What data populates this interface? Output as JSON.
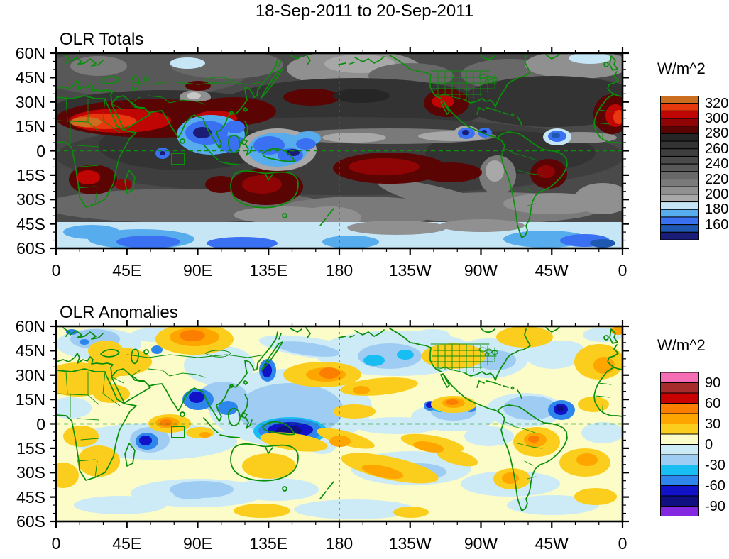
{
  "page": {
    "title": "18-Sep-2011 to 20-Sep-2011"
  },
  "panels": [
    {
      "id": "totals",
      "title": "OLR Totals",
      "units_label": "W/m^2",
      "colorbar": {
        "tick_labels": [
          "320",
          "300",
          "280",
          "260",
          "240",
          "220",
          "200",
          "180",
          "160"
        ],
        "colors_top_to_bottom": [
          "#CC6E20",
          "#E8380E",
          "#C00505",
          "#8F0505",
          "#5A0404",
          "#262626",
          "#333333",
          "#3E3E3E",
          "#4A4A4A",
          "#585858",
          "#686868",
          "#7A7A7A",
          "#909090",
          "#A8A8A8",
          "#C6E6F5",
          "#56ACEC",
          "#3A70F2",
          "#1E58B0",
          "#1B1B78"
        ],
        "contour_interval": 10,
        "labeled_every": 20
      }
    },
    {
      "id": "anomalies",
      "title": "OLR Anomalies",
      "units_label": "W/m^2",
      "colorbar": {
        "tick_labels": [
          "90",
          "60",
          "30",
          "0",
          "-30",
          "-60",
          "-90"
        ],
        "colors_top_to_bottom": [
          "#F56EB5",
          "#A62B2B",
          "#C80000",
          "#FC7E00",
          "#FFA500",
          "#FBCE1D",
          "#FCFCC8",
          "#CDEAF7",
          "#9FCCF2",
          "#18BEF2",
          "#2E86EC",
          "#1212C8",
          "#0F0F80",
          "#8128E0"
        ],
        "contour_interval": 15,
        "labeled_every": 30
      }
    }
  ],
  "axes": {
    "lat_labels": [
      "60N",
      "45N",
      "30N",
      "15N",
      "0",
      "15S",
      "30S",
      "45S",
      "60S"
    ],
    "lon_labels": [
      "0",
      "45E",
      "90E",
      "135E",
      "180",
      "135W",
      "90W",
      "45W",
      "0"
    ],
    "lat_minor_step_deg": 5,
    "lon_minor_step_deg": 15
  },
  "map_annotations": {
    "equator_line": "dashed green line at 0 latitude",
    "dateline_line": "dashed green line at 180 longitude",
    "region_box": "green rectangle over ~70-80E, 0-8S (Indian Ocean)",
    "coastline_color": "#0A8F0A"
  },
  "chart_data": [
    {
      "type": "heatmap",
      "title": "OLR Totals",
      "units": "W/m^2",
      "x_domain_deg_lon": [
        0,
        360
      ],
      "y_domain_deg_lat": [
        -60,
        60
      ],
      "x_tick_labels": [
        "0",
        "45E",
        "90E",
        "135E",
        "180",
        "135W",
        "90W",
        "45W",
        "0"
      ],
      "y_tick_labels": [
        "60N",
        "45N",
        "30N",
        "15N",
        "0",
        "15S",
        "30S",
        "45S",
        "60S"
      ],
      "contour_boundaries": [
        150,
        160,
        170,
        180,
        190,
        200,
        210,
        220,
        230,
        240,
        250,
        260,
        270,
        280,
        290,
        300,
        310,
        320
      ],
      "colorbar_labels": [
        320,
        300,
        280,
        260,
        240,
        220,
        200,
        180,
        160
      ],
      "notable_features": [
        {
          "region": "Sahara and Arabian Peninsula (0-60E, 15-35N)",
          "value_wm2": "300-330 (maximum)"
        },
        {
          "region": "North Africa to Middle East band",
          "value_wm2": "280-300"
        },
        {
          "region": "Southern Africa (15-35E, 10-30S)",
          "value_wm2": "280-310"
        },
        {
          "region": "Australia interior",
          "value_wm2": "280-300"
        },
        {
          "region": "Central South Pacific (180-130W, 0-20S)",
          "value_wm2": "280-290"
        },
        {
          "region": "Eastern Brazil",
          "value_wm2": "280-300"
        },
        {
          "region": "SW United States / NW Mexico",
          "value_wm2": "280-300"
        },
        {
          "region": "Bay of Bengal / Southeast Asia",
          "value_wm2": "160-200 (deep convection)"
        },
        {
          "region": "Maritime Continent / West Pacific",
          "value_wm2": "160-200"
        },
        {
          "region": "Southern Ocean 50-60S",
          "value_wm2": "170-200"
        },
        {
          "region": "East Pacific ITCZ convective spots",
          "value_wm2": "160-190"
        }
      ]
    },
    {
      "type": "heatmap",
      "title": "OLR Anomalies",
      "units": "W/m^2",
      "x_domain_deg_lon": [
        0,
        360
      ],
      "y_domain_deg_lat": [
        -60,
        60
      ],
      "x_tick_labels": [
        "0",
        "45E",
        "90E",
        "135E",
        "180",
        "135W",
        "90W",
        "45W",
        "0"
      ],
      "y_tick_labels": [
        "60N",
        "45N",
        "30N",
        "15N",
        "0",
        "15S",
        "30S",
        "45S",
        "60S"
      ],
      "contour_boundaries": [
        -90,
        -75,
        -60,
        -45,
        -30,
        -15,
        0,
        15,
        30,
        45,
        60,
        75,
        90
      ],
      "colorbar_labels": [
        90,
        60,
        30,
        0,
        -30,
        -60,
        -90
      ],
      "notable_features": [
        {
          "region": "Maritime Continent / New Guinea",
          "anomaly_wm2": "-60 to below -90 (strongest negative)"
        },
        {
          "region": "Bay of Bengal",
          "anomaly_wm2": "-45 to -75"
        },
        {
          "region": "Japan and seas east of Japan",
          "anomaly_wm2": "-45 to -75"
        },
        {
          "region": "Tropical Atlantic near 60W, 10N",
          "anomaly_wm2": "-60 to -90"
        },
        {
          "region": "East Pacific south of Mexico",
          "anomaly_wm2": "-60 to -90"
        },
        {
          "region": "SW Indian Ocean near 55E, 12S",
          "anomaly_wm2": "-60 to -75"
        },
        {
          "region": "Western Siberia",
          "anomaly_wm2": "+30 to +60"
        },
        {
          "region": "NW Pacific northeast of Japan",
          "anomaly_wm2": "+30 to +60"
        },
        {
          "region": "Equatorial Arabian Sea / central Indian Ocean ~65E",
          "anomaly_wm2": "+45 to +60"
        },
        {
          "region": "South Pacific diagonal bands",
          "anomaly_wm2": "+30 to +60"
        },
        {
          "region": "Eastern Brazil",
          "anomaly_wm2": "+30 to +60"
        },
        {
          "region": "Western United States",
          "anomaly_wm2": "+15 to +45"
        }
      ]
    }
  ]
}
